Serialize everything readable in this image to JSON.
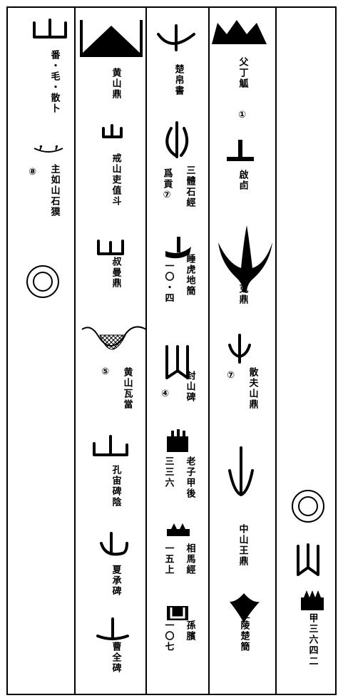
{
  "columns": [
    {
      "labels": [
        "番・毛・散卜",
        "⑧",
        "主如山石獏"
      ]
    },
    {
      "labels": [
        "黄山鼎",
        "戒山吏值斗",
        "叔曼鼎",
        "⑤",
        "黄山瓦當",
        "孔宙碑陰",
        "夏承碑",
        "曹全碑"
      ]
    },
    {
      "labels": [
        "楚帛書",
        "三體石經",
        "爲貢⑦",
        "睡虎地簡",
        "一〇・四",
        "④",
        "封山碑",
        "老子甲後",
        "三三六",
        "相馬經",
        "一五上",
        "孫臏",
        "一〇七"
      ]
    },
    {
      "labels": [
        "父丁觚",
        "①",
        "啟卣",
        "克鼎",
        "⑦",
        "散夫山鼎",
        "中山王鼎",
        "江陵楚簡"
      ]
    },
    {
      "labels": [
        "甲三六四二"
      ]
    }
  ]
}
